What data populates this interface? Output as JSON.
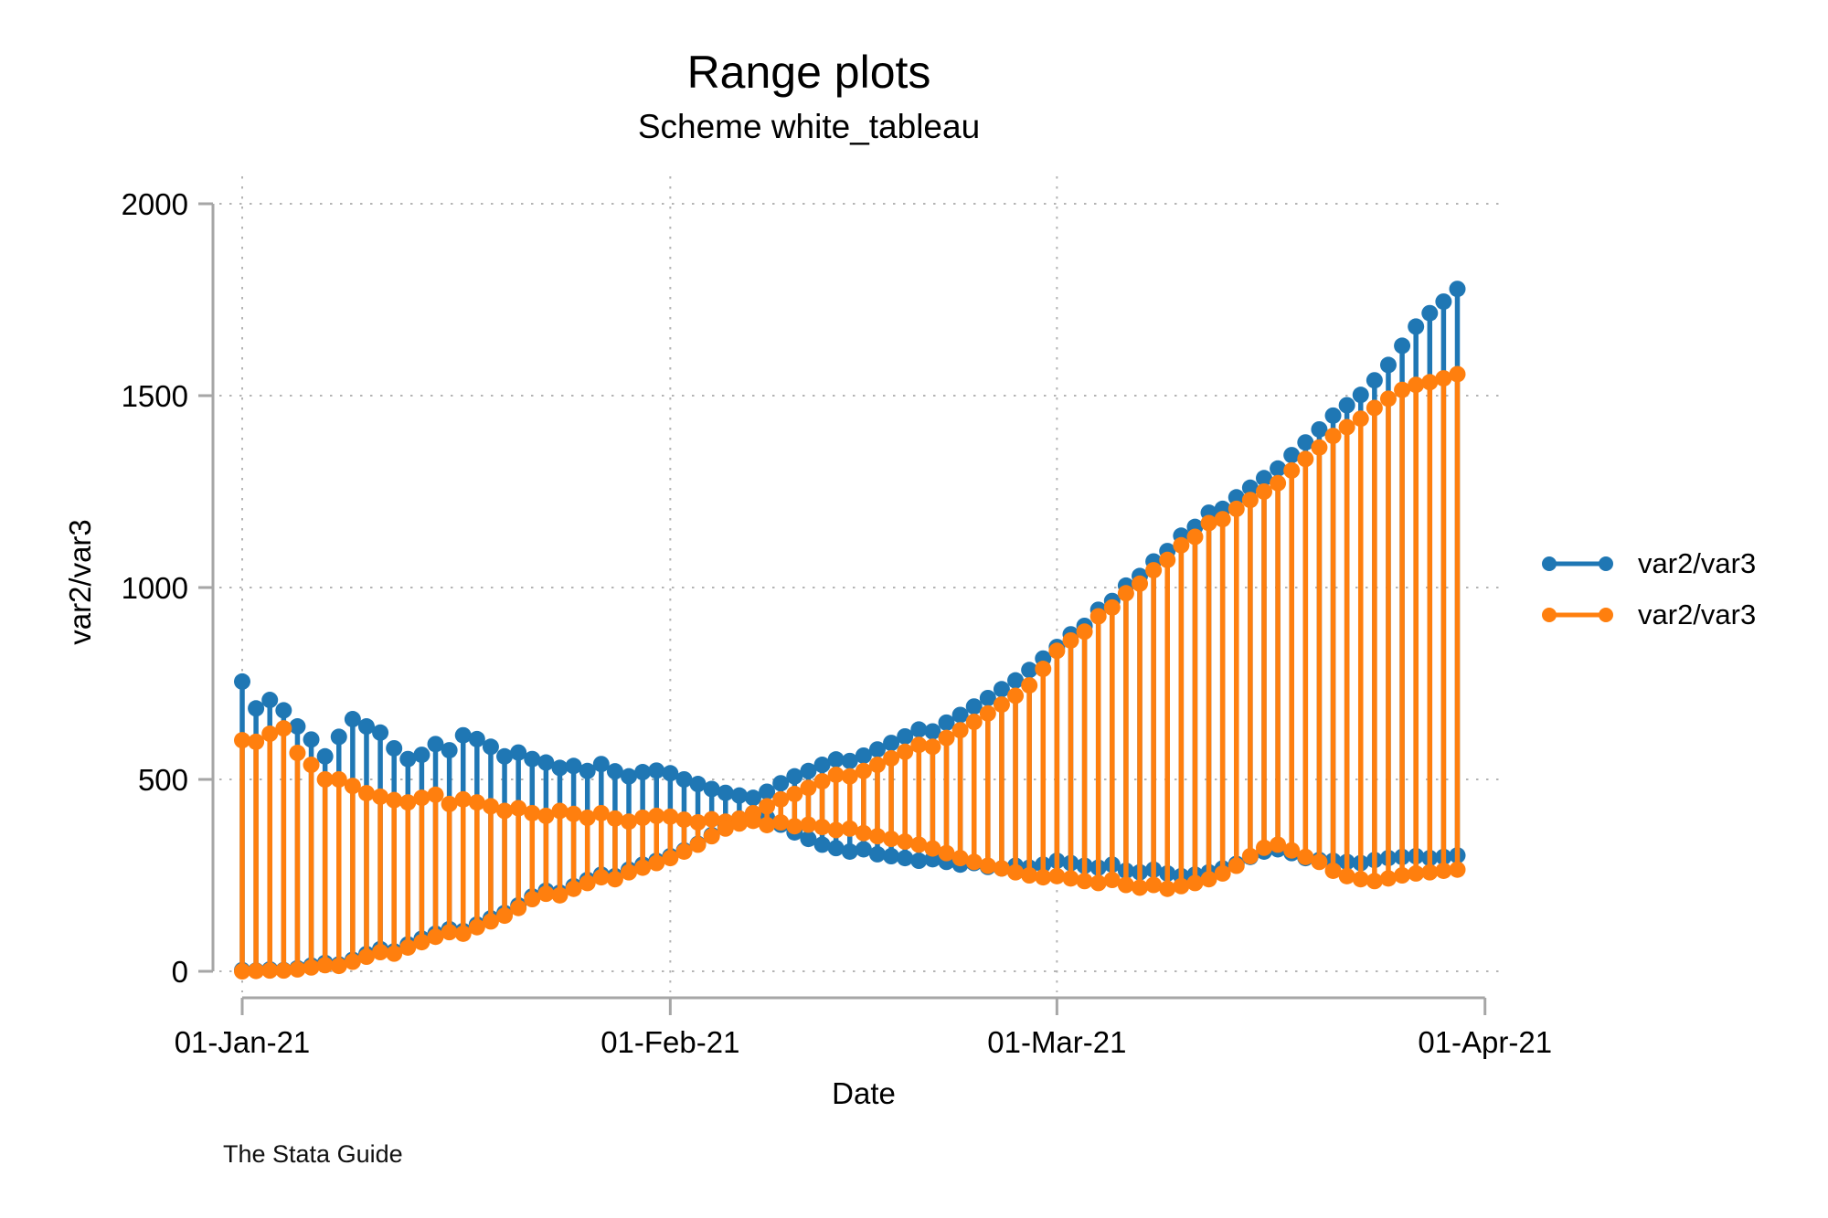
{
  "header": {
    "title": "Range plots",
    "subtitle": "Scheme white_tableau"
  },
  "axis_titles": {
    "x": "Date",
    "y": "var2/var3"
  },
  "footer": {
    "credit": "The Stata Guide"
  },
  "legend": {
    "items": [
      {
        "label": "var2/var3",
        "color": "#1f77b4",
        "symbol": "dot-line-dot"
      },
      {
        "label": "var2/var3",
        "color": "#ff7f0e",
        "symbol": "dot-line-dot"
      }
    ]
  },
  "chart_data": {
    "type": "rangebar",
    "title": "Range plots",
    "subtitle": "Scheme white_tableau",
    "xlabel": "Date",
    "ylabel": "var2/var3",
    "x_start_label": "01-Jan-21",
    "n_days": 89,
    "x_tick_labels": [
      "01-Jan-21",
      "01-Feb-21",
      "01-Mar-21",
      "01-Apr-21"
    ],
    "x_tick_days": [
      0,
      31,
      59,
      90
    ],
    "grid_v_days": [
      0,
      31,
      59
    ],
    "ylim": [
      0,
      2000
    ],
    "y_ticks": [
      0,
      500,
      1000,
      1500,
      2000
    ],
    "grid": {
      "show": true,
      "color": "#b4b4b4",
      "style": "dotted"
    },
    "axis_color": "#a6a6a6",
    "legend_position": "right",
    "series": [
      {
        "name": "var2/var3",
        "color": "#1f77b4",
        "high": [
          755,
          685,
          707,
          680,
          638,
          604,
          560,
          611,
          657,
          638,
          622,
          581,
          553,
          564,
          592,
          576,
          615,
          605,
          585,
          560,
          570,
          553,
          544,
          530,
          535,
          522,
          540,
          521,
          508,
          519,
          523,
          516,
          500,
          488,
          475,
          465,
          458,
          452,
          468,
          490,
          508,
          522,
          538,
          552,
          548,
          562,
          578,
          595,
          612,
          630,
          625,
          648,
          668,
          690,
          712,
          735,
          758,
          785,
          815,
          845,
          878,
          900,
          942,
          965,
          1005,
          1030,
          1068,
          1095,
          1135,
          1158,
          1195,
          1205,
          1235,
          1260,
          1285,
          1310,
          1345,
          1378,
          1412,
          1448,
          1475,
          1502,
          1540,
          1580,
          1630,
          1680,
          1715,
          1745,
          1778
        ],
        "low": [
          3,
          2,
          5,
          3,
          8,
          15,
          22,
          18,
          30,
          45,
          58,
          52,
          70,
          85,
          98,
          110,
          105,
          122,
          138,
          152,
          172,
          195,
          210,
          205,
          222,
          238,
          252,
          248,
          265,
          278,
          288,
          300,
          315,
          332,
          355,
          378,
          398,
          412,
          400,
          382,
          362,
          345,
          330,
          321,
          312,
          318,
          305,
          300,
          295,
          288,
          292,
          285,
          278,
          282,
          272,
          268,
          275,
          270,
          278,
          288,
          282,
          275,
          270,
          278,
          262,
          258,
          265,
          255,
          248,
          252,
          258,
          268,
          280,
          298,
          312,
          318,
          308,
          295,
          290,
          288,
          285,
          282,
          290,
          295,
          298,
          300,
          295,
          298,
          302
        ]
      },
      {
        "name": "var2/var3",
        "color": "#ff7f0e",
        "high": [
          602,
          598,
          619,
          633,
          569,
          538,
          500,
          500,
          483,
          464,
          455,
          446,
          440,
          452,
          460,
          436,
          448,
          440,
          430,
          418,
          425,
          412,
          405,
          418,
          410,
          400,
          412,
          398,
          390,
          400,
          405,
          403,
          395,
          388,
          396,
          390,
          398,
          412,
          430,
          448,
          462,
          478,
          495,
          512,
          508,
          522,
          538,
          555,
          572,
          590,
          585,
          608,
          628,
          650,
          672,
          695,
          718,
          745,
          788,
          835,
          862,
          885,
          925,
          948,
          985,
          1010,
          1045,
          1072,
          1110,
          1132,
          1168,
          1178,
          1205,
          1228,
          1250,
          1272,
          1305,
          1335,
          1365,
          1395,
          1418,
          1440,
          1468,
          1492,
          1515,
          1528,
          1535,
          1545,
          1556
        ],
        "low": [
          0,
          1,
          2,
          2,
          5,
          10,
          16,
          14,
          25,
          38,
          50,
          46,
          62,
          76,
          90,
          102,
          98,
          115,
          130,
          145,
          165,
          188,
          202,
          198,
          215,
          230,
          245,
          240,
          258,
          270,
          282,
          295,
          312,
          330,
          352,
          372,
          385,
          392,
          381,
          388,
          378,
          382,
          376,
          368,
          372,
          360,
          352,
          345,
          338,
          330,
          320,
          308,
          295,
          285,
          275,
          268,
          258,
          250,
          245,
          248,
          242,
          235,
          230,
          238,
          225,
          218,
          225,
          215,
          222,
          230,
          240,
          255,
          275,
          300,
          322,
          330,
          315,
          298,
          285,
          262,
          248,
          240,
          235,
          242,
          250,
          255,
          258,
          262,
          265
        ]
      }
    ]
  }
}
